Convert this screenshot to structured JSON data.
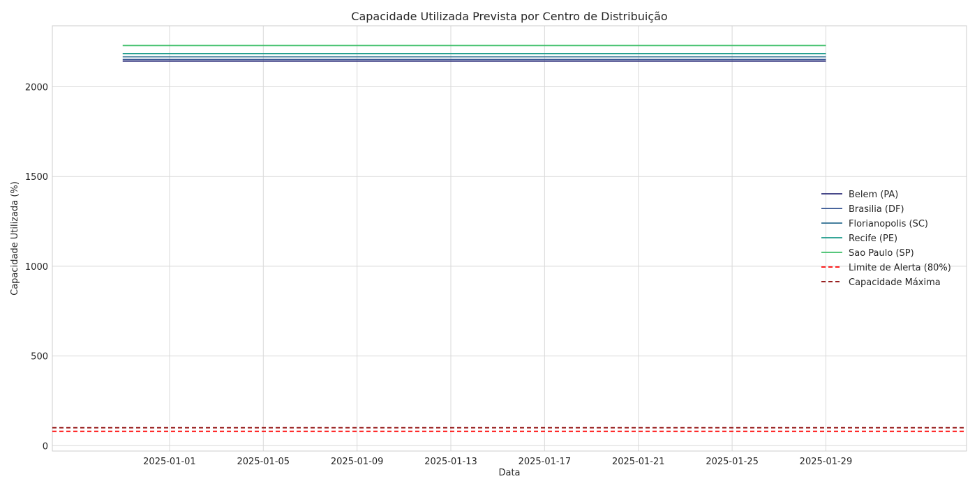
{
  "chart_data": {
    "type": "line",
    "title": "Capacidade Utilizada Prevista por Centro de Distribuição",
    "xlabel": "Data",
    "ylabel": "Capacidade Utilizada (%)",
    "x_ticks": [
      "2025-01-01",
      "2025-01-05",
      "2025-01-09",
      "2025-01-13",
      "2025-01-17",
      "2025-01-21",
      "2025-01-25",
      "2025-01-29"
    ],
    "x_range": [
      "2024-12-27",
      "2025-02-04"
    ],
    "y_ticks": [
      0,
      500,
      1000,
      1500,
      2000
    ],
    "ylim": [
      -30,
      2340
    ],
    "grid": true,
    "legend_position": "center-right",
    "series": [
      {
        "name": "Belem (PA)",
        "color": "#2e2f7a",
        "start": "2024-12-30",
        "end": "2025-01-29",
        "value": 2143
      },
      {
        "name": "Brasilia (DF)",
        "color": "#2f4f8f",
        "start": "2024-12-30",
        "end": "2025-01-29",
        "value": 2152
      },
      {
        "name": "Florianopolis (SC)",
        "color": "#2c6d91",
        "start": "2024-12-30",
        "end": "2025-01-29",
        "value": 2167
      },
      {
        "name": "Recife (PE)",
        "color": "#1a9a8a",
        "start": "2024-12-30",
        "end": "2025-01-29",
        "value": 2185
      },
      {
        "name": "Sao Paulo (SP)",
        "color": "#3fbf6a",
        "start": "2024-12-30",
        "end": "2025-01-29",
        "value": 2230
      }
    ],
    "reference_lines": [
      {
        "name": "Limite de Alerta (80%)",
        "color": "#ff0000",
        "value": 80,
        "style": "dashed"
      },
      {
        "name": "Capacidade Máxima",
        "color": "#8b0000",
        "value": 100,
        "style": "dashed"
      }
    ]
  }
}
